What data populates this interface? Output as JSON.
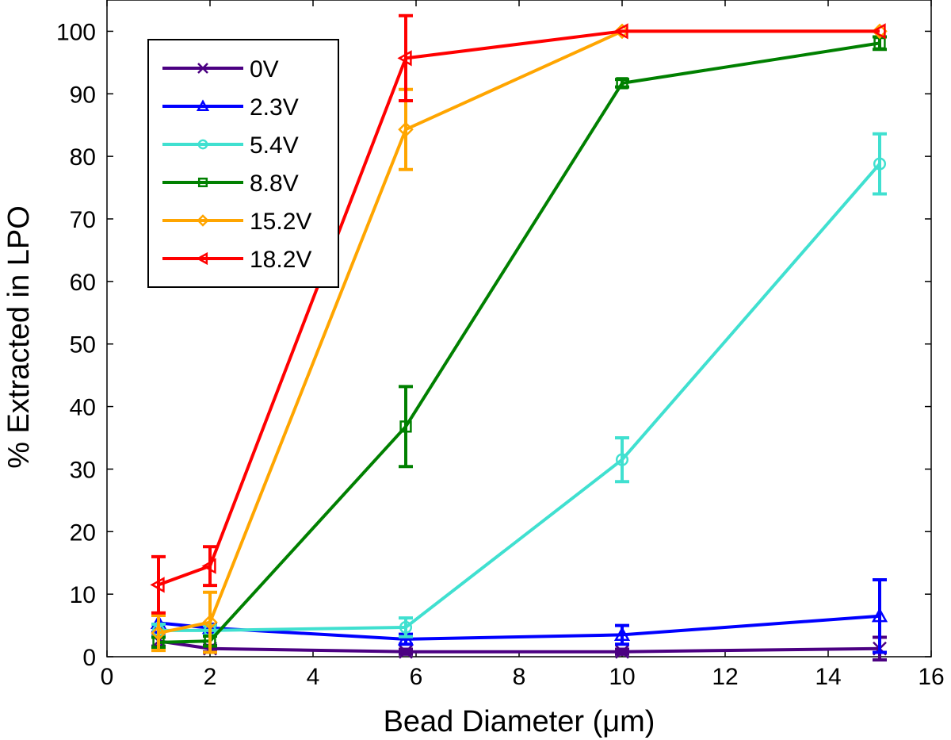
{
  "chart_data": {
    "type": "line",
    "title": "",
    "xlabel": "Bead Diameter (μm)",
    "ylabel": "% Extracted in LPO",
    "xlim": [
      0,
      16
    ],
    "ylim": [
      0,
      105
    ],
    "xticks": [
      0,
      2,
      4,
      6,
      8,
      10,
      12,
      14,
      16
    ],
    "yticks": [
      0,
      10,
      20,
      30,
      40,
      50,
      60,
      70,
      80,
      90,
      100
    ],
    "x": [
      1,
      2,
      5.8,
      10,
      15
    ],
    "legend_position": "top-left",
    "grid": false,
    "series": [
      {
        "name": "0V",
        "color": "#4b0082",
        "marker": "x",
        "values": [
          2.5,
          1.3,
          0.8,
          0.8,
          1.3
        ],
        "errors": [
          0.8,
          0.5,
          0.4,
          0.4,
          1.8
        ]
      },
      {
        "name": "2.3V",
        "color": "#0000ff",
        "marker": "triangle",
        "values": [
          5.4,
          4.6,
          2.8,
          3.5,
          6.5
        ],
        "errors": [
          1.5,
          0.6,
          0.8,
          1.5,
          5.8
        ]
      },
      {
        "name": "5.4V",
        "color": "#40e0d0",
        "marker": "circle",
        "values": [
          4.2,
          4.2,
          4.7,
          31.5,
          78.8
        ],
        "errors": [
          1.0,
          0.8,
          1.5,
          3.5,
          4.8
        ]
      },
      {
        "name": "8.8V",
        "color": "#008000",
        "marker": "square",
        "values": [
          2.3,
          2.5,
          36.8,
          91.7,
          98.1
        ],
        "errors": [
          0.8,
          0.8,
          6.4,
          0.6,
          1.0
        ]
      },
      {
        "name": "15.2V",
        "color": "#ffa500",
        "marker": "diamond",
        "values": [
          3.8,
          5.5,
          84.3,
          100,
          100
        ],
        "errors": [
          2.8,
          4.8,
          6.4,
          0,
          0
        ]
      },
      {
        "name": "18.2V",
        "color": "#ff0000",
        "marker": "triangle-left",
        "values": [
          11.5,
          14.5,
          95.7,
          100,
          100
        ],
        "errors": [
          4.5,
          3.1,
          6.8,
          0,
          0
        ]
      }
    ]
  }
}
